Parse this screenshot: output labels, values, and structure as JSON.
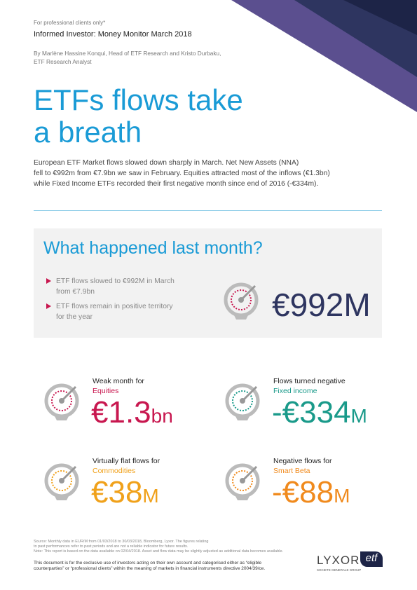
{
  "header": {
    "notice": "For professional clients only*",
    "publication": "Informed Investor: Money Monitor March 2018",
    "authors": [
      "By Marlène Hassine Konqui, Head of ETF Research and Kristo Durbaku,",
      "ETF Research Analyst"
    ]
  },
  "title": [
    "ETFs flows take",
    "a breath"
  ],
  "intro": [
    "European ETF Market flows slowed down sharply in March. Net New Assets (NNA)",
    "fell to €992m from €7.9bn we saw in February. Equities attracted most of the inflows (€1.3bn)",
    "while Fixed Income ETFs recorded their first negative month since end of 2016 (-€334m)."
  ],
  "summary": {
    "heading": "What happened last month?",
    "bullets": [
      [
        "ETF flows slowed to €992M in March",
        "from €7.9bn"
      ],
      [
        "ETF flows remain in positive territory",
        "for the year"
      ]
    ],
    "figure": "€992M"
  },
  "cards": [
    {
      "label": "Weak month for",
      "segment": "Equities",
      "number": "€1.3",
      "unit": "bn"
    },
    {
      "label": "Flows turned negative",
      "segment": "Fixed income",
      "number": "-€334",
      "unit": "M"
    },
    {
      "label": "Virtually flat flows for",
      "segment": "Commodities",
      "number": "€38",
      "unit": "M"
    },
    {
      "label": "Negative flows for",
      "segment": "Smart Beta",
      "number": "-€88",
      "unit": "M"
    }
  ],
  "footnotes": [
    "Source: Monthly data in EUR/M from 01/03/2018 to 30/03/2018, Bloomberg, Lyxor. The figures relating",
    "to past performances refer to past periods and are not a reliable indicator for future results.",
    "Note: This report is based on the data available on 02/04/2018. Asset and flow data may be slightly adjusted as additional data becomes available."
  ],
  "disclaimer": [
    "This document is for the exclusive use of investors acting on their own account and categorised either as “eligible",
    "counterparties” or “professional clients” within the meaning of markets in financial instruments directive 2004/39/ce."
  ],
  "logo": {
    "brand": "LYXOR",
    "badge": "etf",
    "group": "SOCIETE GENERALE GROUP"
  }
}
